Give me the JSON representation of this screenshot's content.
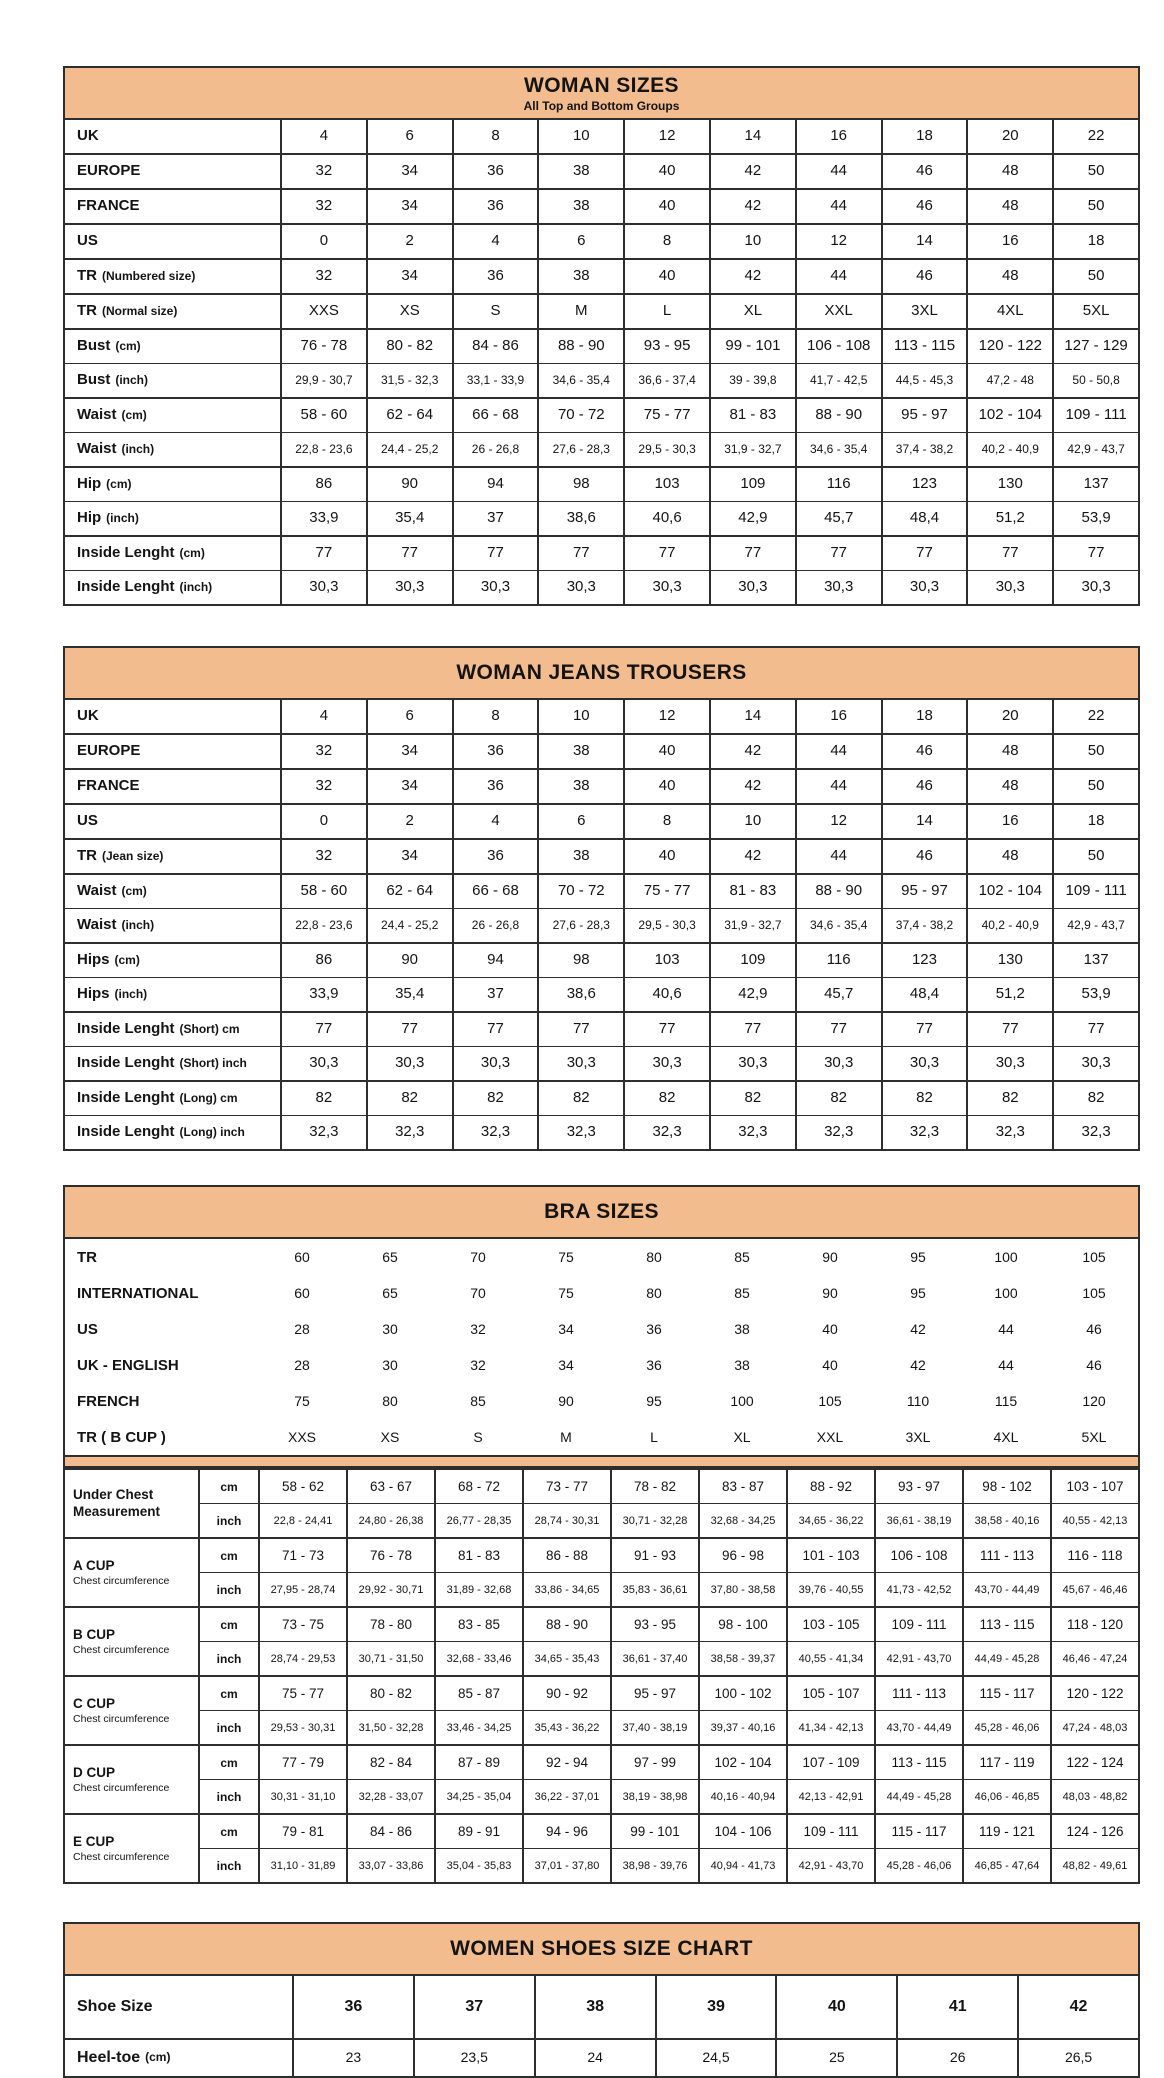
{
  "page": {
    "background": "#ffffff",
    "accent_color": "#f3bc8e",
    "border_color": "#2e2e2e"
  },
  "woman_sizes": {
    "title": "WOMAN SIZES",
    "subtitle": "All Top and Bottom Groups",
    "rows": [
      {
        "label": "UK",
        "values": [
          "4",
          "6",
          "8",
          "10",
          "12",
          "14",
          "16",
          "18",
          "20",
          "22"
        ]
      },
      {
        "label": "EUROPE",
        "values": [
          "32",
          "34",
          "36",
          "38",
          "40",
          "42",
          "44",
          "46",
          "48",
          "50"
        ]
      },
      {
        "label": "FRANCE",
        "values": [
          "32",
          "34",
          "36",
          "38",
          "40",
          "42",
          "44",
          "46",
          "48",
          "50"
        ]
      },
      {
        "label": "US",
        "values": [
          "0",
          "2",
          "4",
          "6",
          "8",
          "10",
          "12",
          "14",
          "16",
          "18"
        ]
      },
      {
        "label": "TR",
        "note": "(Numbered size)",
        "values": [
          "32",
          "34",
          "36",
          "38",
          "40",
          "42",
          "44",
          "46",
          "48",
          "50"
        ]
      },
      {
        "label": "TR",
        "note": "(Normal size)",
        "values": [
          "XXS",
          "XS",
          "S",
          "M",
          "L",
          "XL",
          "XXL",
          "3XL",
          "4XL",
          "5XL"
        ]
      },
      {
        "pair": [
          {
            "label": "Bust",
            "note": "(cm)",
            "values": [
              "76 - 78",
              "80 - 82",
              "84 - 86",
              "88 - 90",
              "93 - 95",
              "99 - 101",
              "106 - 108",
              "113 - 115",
              "120 - 122",
              "127 - 129"
            ]
          },
          {
            "label": "Bust",
            "note": "(inch)",
            "small": true,
            "values": [
              "29,9 - 30,7",
              "31,5 - 32,3",
              "33,1 - 33,9",
              "34,6 - 35,4",
              "36,6 - 37,4",
              "39 - 39,8",
              "41,7 - 42,5",
              "44,5 - 45,3",
              "47,2 - 48",
              "50 - 50,8"
            ]
          }
        ]
      },
      {
        "pair": [
          {
            "label": "Waist",
            "note": "(cm)",
            "values": [
              "58 - 60",
              "62 - 64",
              "66 - 68",
              "70 - 72",
              "75 - 77",
              "81 - 83",
              "88 - 90",
              "95 - 97",
              "102 - 104",
              "109 - 111"
            ]
          },
          {
            "label": "Waist",
            "note": "(inch)",
            "small": true,
            "values": [
              "22,8 - 23,6",
              "24,4 - 25,2",
              "26 - 26,8",
              "27,6 - 28,3",
              "29,5 - 30,3",
              "31,9 - 32,7",
              "34,6 - 35,4",
              "37,4 - 38,2",
              "40,2 - 40,9",
              "42,9 - 43,7"
            ]
          }
        ]
      },
      {
        "pair": [
          {
            "label": "Hip",
            "note": "(cm)",
            "values": [
              "86",
              "90",
              "94",
              "98",
              "103",
              "109",
              "116",
              "123",
              "130",
              "137"
            ]
          },
          {
            "label": "Hip",
            "note": "(inch)",
            "values": [
              "33,9",
              "35,4",
              "37",
              "38,6",
              "40,6",
              "42,9",
              "45,7",
              "48,4",
              "51,2",
              "53,9"
            ]
          }
        ]
      },
      {
        "pair": [
          {
            "label": "Inside Lenght",
            "note": "(cm)",
            "values": [
              "77",
              "77",
              "77",
              "77",
              "77",
              "77",
              "77",
              "77",
              "77",
              "77"
            ]
          },
          {
            "label": "Inside Lenght",
            "note": "(inch)",
            "values": [
              "30,3",
              "30,3",
              "30,3",
              "30,3",
              "30,3",
              "30,3",
              "30,3",
              "30,3",
              "30,3",
              "30,3"
            ]
          }
        ]
      }
    ]
  },
  "woman_jeans": {
    "title": "WOMAN JEANS TROUSERS",
    "rows": [
      {
        "label": "UK",
        "values": [
          "4",
          "6",
          "8",
          "10",
          "12",
          "14",
          "16",
          "18",
          "20",
          "22"
        ]
      },
      {
        "label": "EUROPE",
        "values": [
          "32",
          "34",
          "36",
          "38",
          "40",
          "42",
          "44",
          "46",
          "48",
          "50"
        ]
      },
      {
        "label": "FRANCE",
        "values": [
          "32",
          "34",
          "36",
          "38",
          "40",
          "42",
          "44",
          "46",
          "48",
          "50"
        ]
      },
      {
        "label": "US",
        "values": [
          "0",
          "2",
          "4",
          "6",
          "8",
          "10",
          "12",
          "14",
          "16",
          "18"
        ]
      },
      {
        "label": "TR",
        "note": "(Jean size)",
        "values": [
          "32",
          "34",
          "36",
          "38",
          "40",
          "42",
          "44",
          "46",
          "48",
          "50"
        ]
      },
      {
        "pair": [
          {
            "label": "Waist",
            "note": "(cm)",
            "values": [
              "58 - 60",
              "62 - 64",
              "66 - 68",
              "70 - 72",
              "75 - 77",
              "81 - 83",
              "88 - 90",
              "95 - 97",
              "102 - 104",
              "109 - 111"
            ]
          },
          {
            "label": "Waist",
            "note": "(inch)",
            "small": true,
            "values": [
              "22,8 - 23,6",
              "24,4 - 25,2",
              "26 - 26,8",
              "27,6 - 28,3",
              "29,5 - 30,3",
              "31,9 - 32,7",
              "34,6 - 35,4",
              "37,4 - 38,2",
              "40,2 - 40,9",
              "42,9 - 43,7"
            ]
          }
        ]
      },
      {
        "pair": [
          {
            "label": "Hips",
            "note": "(cm)",
            "values": [
              "86",
              "90",
              "94",
              "98",
              "103",
              "109",
              "116",
              "123",
              "130",
              "137"
            ]
          },
          {
            "label": "Hips",
            "note": "(inch)",
            "values": [
              "33,9",
              "35,4",
              "37",
              "38,6",
              "40,6",
              "42,9",
              "45,7",
              "48,4",
              "51,2",
              "53,9"
            ]
          }
        ]
      },
      {
        "pair": [
          {
            "label": "Inside Lenght",
            "note": "(Short) cm",
            "values": [
              "77",
              "77",
              "77",
              "77",
              "77",
              "77",
              "77",
              "77",
              "77",
              "77"
            ]
          },
          {
            "label": "Inside Lenght",
            "note": "(Short) inch",
            "values": [
              "30,3",
              "30,3",
              "30,3",
              "30,3",
              "30,3",
              "30,3",
              "30,3",
              "30,3",
              "30,3",
              "30,3"
            ]
          }
        ]
      },
      {
        "pair": [
          {
            "label": "Inside Lenght",
            "note": "(Long) cm",
            "values": [
              "82",
              "82",
              "82",
              "82",
              "82",
              "82",
              "82",
              "82",
              "82",
              "82"
            ]
          },
          {
            "label": "Inside Lenght",
            "note": "(Long) inch",
            "values": [
              "32,3",
              "32,3",
              "32,3",
              "32,3",
              "32,3",
              "32,3",
              "32,3",
              "32,3",
              "32,3",
              "32,3"
            ]
          }
        ]
      }
    ]
  },
  "bra_sizes": {
    "title": "BRA SIZES",
    "top_rows": [
      {
        "label": "TR",
        "values": [
          "60",
          "65",
          "70",
          "75",
          "80",
          "85",
          "90",
          "95",
          "100",
          "105"
        ]
      },
      {
        "label": "INTERNATIONAL",
        "values": [
          "60",
          "65",
          "70",
          "75",
          "80",
          "85",
          "90",
          "95",
          "100",
          "105"
        ]
      },
      {
        "label": "US",
        "values": [
          "28",
          "30",
          "32",
          "34",
          "36",
          "38",
          "40",
          "42",
          "44",
          "46"
        ]
      },
      {
        "label": "UK - ENGLISH",
        "values": [
          "28",
          "30",
          "32",
          "34",
          "36",
          "38",
          "40",
          "42",
          "44",
          "46"
        ]
      },
      {
        "label": "FRENCH",
        "values": [
          "75",
          "80",
          "85",
          "90",
          "95",
          "100",
          "105",
          "110",
          "115",
          "120"
        ]
      },
      {
        "label": "TR ( B CUP )",
        "values": [
          "XXS",
          "XS",
          "S",
          "M",
          "L",
          "XL",
          "XXL",
          "3XL",
          "4XL",
          "5XL"
        ]
      }
    ],
    "groups": [
      {
        "label": "Under Chest Measurement",
        "sublabel": "",
        "rows": [
          {
            "unit": "cm",
            "values": [
              "58 - 62",
              "63 - 67",
              "68 - 72",
              "73 - 77",
              "78 - 82",
              "83 - 87",
              "88 - 92",
              "93 - 97",
              "98 - 102",
              "103 - 107"
            ]
          },
          {
            "unit": "inch",
            "values": [
              "22,8 - 24,41",
              "24,80 - 26,38",
              "26,77 - 28,35",
              "28,74 - 30,31",
              "30,71 - 32,28",
              "32,68 - 34,25",
              "34,65 - 36,22",
              "36,61 - 38,19",
              "38,58 - 40,16",
              "40,55 - 42,13"
            ]
          }
        ]
      },
      {
        "label": "A CUP",
        "sublabel": "Chest circumference",
        "rows": [
          {
            "unit": "cm",
            "values": [
              "71 - 73",
              "76 - 78",
              "81 - 83",
              "86 - 88",
              "91 - 93",
              "96 - 98",
              "101 - 103",
              "106 - 108",
              "111 - 113",
              "116 - 118"
            ]
          },
          {
            "unit": "inch",
            "values": [
              "27,95 - 28,74",
              "29,92 - 30,71",
              "31,89 - 32,68",
              "33,86 - 34,65",
              "35,83 - 36,61",
              "37,80 - 38,58",
              "39,76 - 40,55",
              "41,73 - 42,52",
              "43,70 - 44,49",
              "45,67 - 46,46"
            ]
          }
        ]
      },
      {
        "label": "B CUP",
        "sublabel": "Chest circumference",
        "rows": [
          {
            "unit": "cm",
            "values": [
              "73 - 75",
              "78 - 80",
              "83 - 85",
              "88 - 90",
              "93 - 95",
              "98 - 100",
              "103 - 105",
              "109 - 111",
              "113 - 115",
              "118 - 120"
            ]
          },
          {
            "unit": "inch",
            "values": [
              "28,74 - 29,53",
              "30,71 - 31,50",
              "32,68 - 33,46",
              "34,65 - 35,43",
              "36,61 - 37,40",
              "38,58 - 39,37",
              "40,55 - 41,34",
              "42,91 - 43,70",
              "44,49 - 45,28",
              "46,46 - 47,24"
            ]
          }
        ]
      },
      {
        "label": "C CUP",
        "sublabel": "Chest circumference",
        "rows": [
          {
            "unit": "cm",
            "values": [
              "75 - 77",
              "80 - 82",
              "85 - 87",
              "90 - 92",
              "95 - 97",
              "100 - 102",
              "105 - 107",
              "111 - 113",
              "115 - 117",
              "120 - 122"
            ]
          },
          {
            "unit": "inch",
            "values": [
              "29,53 - 30,31",
              "31,50 - 32,28",
              "33,46 - 34,25",
              "35,43 - 36,22",
              "37,40 - 38,19",
              "39,37 - 40,16",
              "41,34 - 42,13",
              "43,70 - 44,49",
              "45,28 - 46,06",
              "47,24 - 48,03"
            ]
          }
        ]
      },
      {
        "label": "D CUP",
        "sublabel": "Chest circumference",
        "rows": [
          {
            "unit": "cm",
            "values": [
              "77 - 79",
              "82 - 84",
              "87 - 89",
              "92 - 94",
              "97 - 99",
              "102 - 104",
              "107 - 109",
              "113 - 115",
              "117 - 119",
              "122 - 124"
            ]
          },
          {
            "unit": "inch",
            "values": [
              "30,31 - 31,10",
              "32,28 - 33,07",
              "34,25 - 35,04",
              "36,22 - 37,01",
              "38,19 - 38,98",
              "40,16 - 40,94",
              "42,13 - 42,91",
              "44,49 - 45,28",
              "46,06 - 46,85",
              "48,03 - 48,82"
            ]
          }
        ]
      },
      {
        "label": "E CUP",
        "sublabel": "Chest circumference",
        "rows": [
          {
            "unit": "cm",
            "values": [
              "79 - 81",
              "84 - 86",
              "89 - 91",
              "94 - 96",
              "99 - 101",
              "104 - 106",
              "109 - 111",
              "115 - 117",
              "119 - 121",
              "124 - 126"
            ]
          },
          {
            "unit": "inch",
            "values": [
              "31,10 - 31,89",
              "33,07 - 33,86",
              "35,04 - 35,83",
              "37,01 - 37,80",
              "38,98 - 39,76",
              "40,94 - 41,73",
              "42,91 - 43,70",
              "45,28 - 46,06",
              "46,85 - 47,64",
              "48,82 - 49,61"
            ]
          }
        ]
      }
    ]
  },
  "shoes": {
    "title": "WOMEN SHOES SIZE CHART",
    "rows": [
      {
        "label": "Shoe Size",
        "values": [
          "36",
          "37",
          "38",
          "39",
          "40",
          "41",
          "42"
        ]
      },
      {
        "label": "Heel-toe",
        "note": "(cm)",
        "values": [
          "23",
          "23,5",
          "24",
          "24,5",
          "25",
          "26",
          "26,5"
        ]
      }
    ]
  }
}
